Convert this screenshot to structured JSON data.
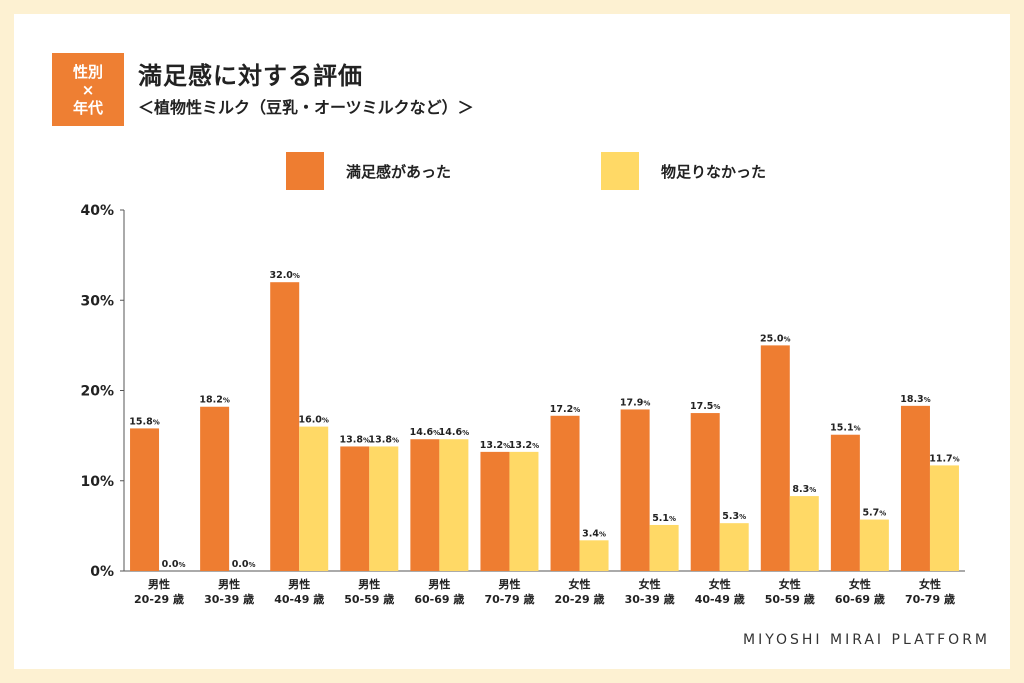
{
  "badge": {
    "line1": "性別",
    "line2": "×",
    "line3": "年代"
  },
  "footer": "MIYOSHI MIRAI PLATFORM",
  "colors": {
    "series1": "#ee7d31",
    "series2": "#ffd966"
  },
  "chart_data": {
    "type": "bar",
    "title": "満足感に対する評価",
    "subtitle": "＜植物性ミルク（豆乳・オーツミルクなど）＞",
    "yticks": [
      "0%",
      "10%",
      "20%",
      "30%",
      "40%"
    ],
    "ylim": [
      0,
      40
    ],
    "unit": "%",
    "legend_position": "top-center",
    "categories": [
      {
        "line1": "男性",
        "line2": "20-29 歳"
      },
      {
        "line1": "男性",
        "line2": "30-39 歳"
      },
      {
        "line1": "男性",
        "line2": "40-49 歳"
      },
      {
        "line1": "男性",
        "line2": "50-59 歳"
      },
      {
        "line1": "男性",
        "line2": "60-69 歳"
      },
      {
        "line1": "男性",
        "line2": "70-79 歳"
      },
      {
        "line1": "女性",
        "line2": "20-29 歳"
      },
      {
        "line1": "女性",
        "line2": "30-39 歳"
      },
      {
        "line1": "女性",
        "line2": "40-49 歳"
      },
      {
        "line1": "女性",
        "line2": "50-59 歳"
      },
      {
        "line1": "女性",
        "line2": "60-69 歳"
      },
      {
        "line1": "女性",
        "line2": "70-79 歳"
      }
    ],
    "series": [
      {
        "name": "満足感があった",
        "values": [
          15.8,
          18.2,
          32.0,
          13.8,
          14.6,
          13.2,
          17.2,
          17.9,
          17.5,
          25.0,
          15.1,
          18.3
        ]
      },
      {
        "name": "物足りなかった",
        "values": [
          0.0,
          0.0,
          16.0,
          13.8,
          14.6,
          13.2,
          3.4,
          5.1,
          5.3,
          8.3,
          5.7,
          11.7
        ]
      }
    ]
  }
}
